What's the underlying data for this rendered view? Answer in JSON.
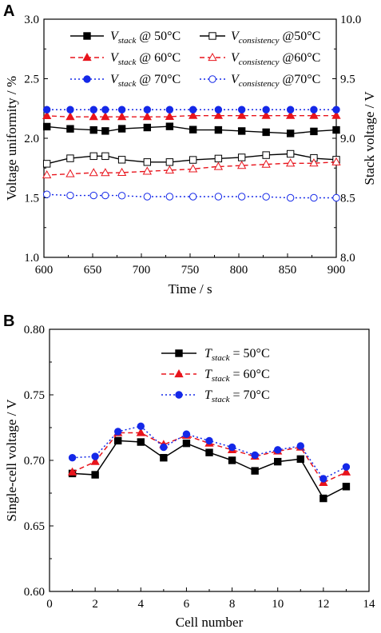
{
  "chart_data": [
    {
      "type": "line",
      "panel_label": "A",
      "xlabel": "Time / s",
      "ylabel": "Voltage uniformity / %",
      "ylabel_right": "Stack voltage / V",
      "xlim": [
        600,
        900
      ],
      "ylim": [
        1.0,
        3.0
      ],
      "ylim_right": [
        8.0,
        10.0
      ],
      "x_ticks": [
        "600",
        "650",
        "700",
        "750",
        "800",
        "850",
        "900"
      ],
      "y_ticks": [
        "1.0",
        "1.5",
        "2.0",
        "2.5",
        "3.0"
      ],
      "y_ticks_right": [
        "8.0",
        "8.5",
        "9.0",
        "9.5",
        "10.0"
      ],
      "marker_x": [
        603,
        627,
        651,
        663,
        680,
        706,
        729,
        753,
        779,
        803,
        828,
        853,
        877,
        900
      ],
      "series": [
        {
          "name_main": "V",
          "name_sub": "stack",
          "name_rest": " @ 50°C",
          "axis": "right",
          "color": "#000000",
          "marker": "square-filled",
          "dash": "solid",
          "x": [
            600,
            625,
            650,
            665,
            680,
            705,
            730,
            755,
            780,
            805,
            830,
            855,
            880,
            900
          ],
          "values": [
            9.1,
            9.08,
            9.07,
            9.06,
            9.08,
            9.09,
            9.1,
            9.07,
            9.07,
            9.06,
            9.05,
            9.04,
            9.06,
            9.07
          ]
        },
        {
          "name_main": "V",
          "name_sub": "consistency",
          "name_rest": " @50°C",
          "axis": "left",
          "color": "#000000",
          "marker": "square-open",
          "dash": "solid",
          "x": [
            600,
            625,
            650,
            665,
            680,
            705,
            730,
            755,
            780,
            805,
            830,
            855,
            880,
            900
          ],
          "values": [
            1.78,
            1.83,
            1.85,
            1.85,
            1.82,
            1.8,
            1.8,
            1.82,
            1.83,
            1.84,
            1.86,
            1.87,
            1.83,
            1.82
          ]
        },
        {
          "name_main": "V",
          "name_sub": "stack",
          "name_rest": " @ 60°C",
          "axis": "right",
          "color": "#e8141c",
          "marker": "triangle-filled",
          "dash": "dash",
          "x": [
            600,
            625,
            650,
            675,
            700,
            725,
            750,
            775,
            800,
            825,
            850,
            875,
            900
          ],
          "values": [
            9.19,
            9.18,
            9.18,
            9.18,
            9.18,
            9.18,
            9.19,
            9.19,
            9.19,
            9.19,
            9.19,
            9.19,
            9.19
          ]
        },
        {
          "name_main": "V",
          "name_sub": "consistency",
          "name_rest": " @60°C",
          "axis": "left",
          "color": "#e8141c",
          "marker": "triangle-open",
          "dash": "dash",
          "x": [
            600,
            625,
            650,
            675,
            700,
            725,
            750,
            775,
            800,
            825,
            850,
            875,
            900
          ],
          "values": [
            1.69,
            1.7,
            1.71,
            1.71,
            1.72,
            1.73,
            1.74,
            1.76,
            1.77,
            1.78,
            1.79,
            1.79,
            1.8
          ]
        },
        {
          "name_main": "V",
          "name_sub": "stack",
          "name_rest": " @ 70°C",
          "axis": "right",
          "color": "#1428e8",
          "marker": "circle-filled",
          "dash": "dot",
          "x": [
            600,
            625,
            650,
            675,
            700,
            725,
            750,
            775,
            800,
            825,
            850,
            875,
            900
          ],
          "values": [
            9.24,
            9.24,
            9.24,
            9.24,
            9.24,
            9.24,
            9.24,
            9.24,
            9.24,
            9.24,
            9.24,
            9.24,
            9.24
          ]
        },
        {
          "name_main": "V",
          "name_sub": "consistency",
          "name_rest": " @70°C",
          "axis": "left",
          "color": "#1428e8",
          "marker": "circle-open",
          "dash": "dot",
          "x": [
            600,
            625,
            650,
            675,
            700,
            725,
            750,
            775,
            800,
            825,
            850,
            875,
            900
          ],
          "values": [
            1.53,
            1.52,
            1.52,
            1.52,
            1.51,
            1.51,
            1.51,
            1.51,
            1.51,
            1.51,
            1.5,
            1.5,
            1.5
          ]
        }
      ]
    },
    {
      "type": "line",
      "panel_label": "B",
      "xlabel": "Cell number",
      "ylabel": "Single-cell voltage / V",
      "xlim": [
        0,
        14
      ],
      "ylim": [
        0.6,
        0.8
      ],
      "x_ticks": [
        "0",
        "2",
        "4",
        "6",
        "8",
        "10",
        "12",
        "14"
      ],
      "y_ticks": [
        "0.60",
        "0.65",
        "0.70",
        "0.75",
        "0.80"
      ],
      "x": [
        1,
        2,
        3,
        4,
        5,
        6,
        7,
        8,
        9,
        10,
        11,
        12,
        13
      ],
      "series": [
        {
          "name_main": "T",
          "name_sub": "stack",
          "name_rest": " = 50°C",
          "color": "#000000",
          "marker": "square-filled",
          "dash": "solid",
          "values": [
            0.69,
            0.689,
            0.715,
            0.714,
            0.702,
            0.713,
            0.706,
            0.7,
            0.692,
            0.699,
            0.701,
            0.671,
            0.68
          ]
        },
        {
          "name_main": "T",
          "name_sub": "stack",
          "name_rest": " = 60°C",
          "color": "#e8141c",
          "marker": "triangle-filled",
          "dash": "dash",
          "values": [
            0.691,
            0.699,
            0.721,
            0.721,
            0.712,
            0.719,
            0.713,
            0.708,
            0.703,
            0.707,
            0.71,
            0.683,
            0.691
          ]
        },
        {
          "name_main": "T",
          "name_sub": "stack",
          "name_rest": " = 70°C",
          "color": "#1428e8",
          "marker": "circle-filled",
          "dash": "dot",
          "values": [
            0.702,
            0.703,
            0.722,
            0.726,
            0.71,
            0.72,
            0.715,
            0.71,
            0.704,
            0.708,
            0.711,
            0.686,
            0.695
          ]
        }
      ]
    }
  ]
}
